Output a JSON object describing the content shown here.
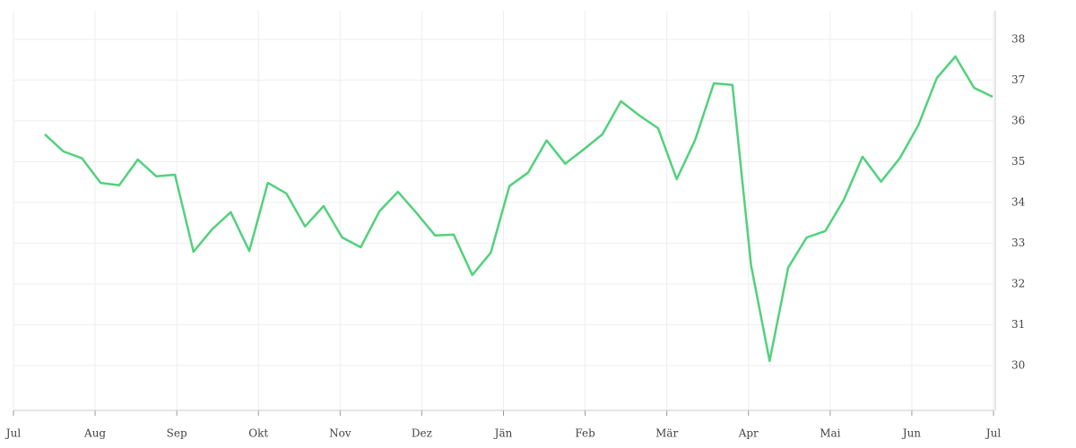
{
  "chart_data": {
    "type": "line",
    "x_labels": [
      "Jul",
      "Aug",
      "Sep",
      "Okt",
      "Nov",
      "Dez",
      "Jän",
      "Feb",
      "Mär",
      "Apr",
      "Mai",
      "Jun",
      "Jul"
    ],
    "series": [
      {
        "color": "#52d17c",
        "values": [
          35.67,
          35.25,
          35.08,
          34.48,
          34.42,
          35.05,
          34.64,
          34.68,
          32.79,
          33.34,
          33.76,
          32.81,
          34.48,
          34.22,
          33.41,
          33.91,
          33.14,
          32.9,
          33.78,
          34.26,
          33.74,
          33.19,
          33.21,
          32.22,
          32.77,
          34.4,
          34.73,
          35.52,
          34.95,
          35.3,
          35.67,
          36.48,
          36.13,
          35.82,
          34.57,
          35.54,
          36.92,
          36.88,
          32.46,
          30.11,
          32.4,
          33.14,
          33.3,
          34.07,
          35.12,
          34.51,
          35.08,
          35.89,
          37.05,
          37.58,
          36.81,
          36.59
        ]
      }
    ],
    "ylim": [
      28.9,
      38.7
    ],
    "yticks": [
      30,
      31,
      32,
      33,
      34,
      35,
      36,
      37,
      38
    ],
    "grid": true
  }
}
